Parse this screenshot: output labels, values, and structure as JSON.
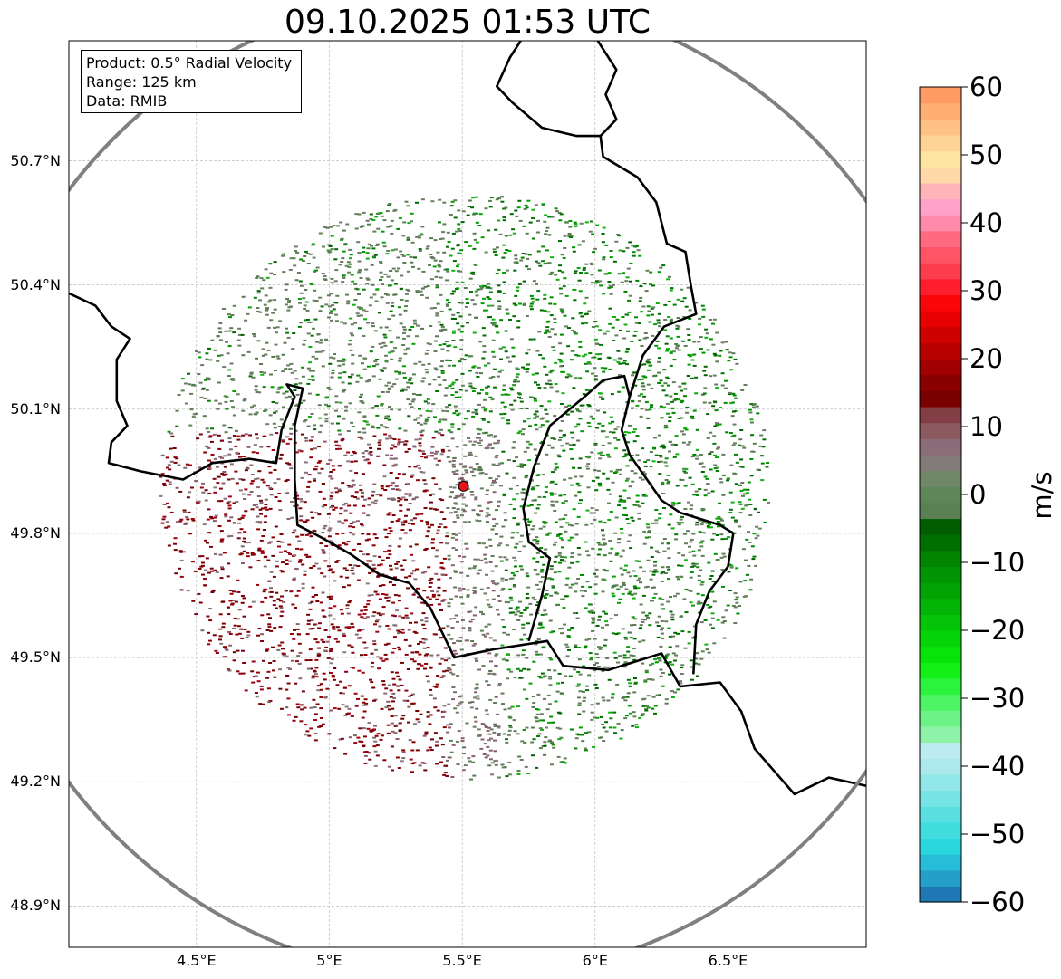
{
  "title": "09.10.2025 01:53 UTC",
  "info": {
    "product": "Product: 0.5° Radial Velocity",
    "range": "Range: 125 km",
    "data": "Data: RMIB"
  },
  "map": {
    "lon_range": [
      4.02,
      7.02
    ],
    "lat_range": [
      48.8,
      50.99
    ],
    "radar_site": {
      "lon": 5.505,
      "lat": 49.914,
      "color": "#e8141c"
    },
    "range_ring_km": 125,
    "ring_color": "#808080",
    "border_color": "#000000",
    "lat_ticks": [
      {
        "value": 48.9,
        "label": "48.9°N"
      },
      {
        "value": 49.2,
        "label": "49.2°N"
      },
      {
        "value": 49.5,
        "label": "49.5°N"
      },
      {
        "value": 49.8,
        "label": "49.8°N"
      },
      {
        "value": 50.1,
        "label": "50.1°N"
      },
      {
        "value": 50.4,
        "label": "50.4°N"
      },
      {
        "value": 50.7,
        "label": "50.7°N"
      }
    ],
    "lon_ticks": [
      {
        "value": 4.5,
        "label": "4.5°E"
      },
      {
        "value": 5.0,
        "label": "5°E"
      },
      {
        "value": 5.5,
        "label": "5.5°E"
      },
      {
        "value": 6.0,
        "label": "6°E"
      },
      {
        "value": 6.5,
        "label": "6.5°E"
      }
    ],
    "borders": [
      [
        [
          4.02,
          50.38
        ],
        [
          4.12,
          50.35
        ],
        [
          4.18,
          50.3
        ],
        [
          4.25,
          50.27
        ],
        [
          4.2,
          50.22
        ],
        [
          4.2,
          50.12
        ],
        [
          4.24,
          50.06
        ],
        [
          4.18,
          50.02
        ],
        [
          4.17,
          49.97
        ],
        [
          4.29,
          49.95
        ],
        [
          4.45,
          49.93
        ],
        [
          4.56,
          49.97
        ],
        [
          4.7,
          49.98
        ],
        [
          4.8,
          49.97
        ],
        [
          4.82,
          50.05
        ],
        [
          4.87,
          50.13
        ],
        [
          4.84,
          50.16
        ],
        [
          4.9,
          50.15
        ],
        [
          4.87,
          50.06
        ],
        [
          4.87,
          49.93
        ],
        [
          4.88,
          49.82
        ],
        [
          4.97,
          49.79
        ],
        [
          5.08,
          49.75
        ],
        [
          5.19,
          49.7
        ],
        [
          5.3,
          49.68
        ],
        [
          5.38,
          49.62
        ],
        [
          5.47,
          49.5
        ],
        [
          5.62,
          49.52
        ],
        [
          5.82,
          49.54
        ],
        [
          5.88,
          49.48
        ],
        [
          6.05,
          49.47
        ],
        [
          6.15,
          49.49
        ],
        [
          6.25,
          49.51
        ],
        [
          6.32,
          49.43
        ],
        [
          6.47,
          49.44
        ],
        [
          6.55,
          49.37
        ],
        [
          6.6,
          49.28
        ],
        [
          6.75,
          49.17
        ],
        [
          6.88,
          49.21
        ],
        [
          7.02,
          49.19
        ]
      ],
      [
        [
          5.75,
          49.54
        ],
        [
          5.8,
          49.65
        ],
        [
          5.83,
          49.74
        ],
        [
          5.75,
          49.78
        ],
        [
          5.73,
          49.86
        ],
        [
          5.77,
          49.96
        ],
        [
          5.83,
          50.06
        ],
        [
          5.96,
          50.13
        ],
        [
          6.03,
          50.17
        ],
        [
          6.11,
          50.18
        ],
        [
          6.13,
          50.13
        ],
        [
          6.1,
          50.05
        ],
        [
          6.13,
          49.99
        ],
        [
          6.25,
          49.88
        ],
        [
          6.32,
          49.85
        ],
        [
          6.47,
          49.82
        ],
        [
          6.52,
          49.8
        ],
        [
          6.5,
          49.72
        ],
        [
          6.43,
          49.66
        ],
        [
          6.38,
          49.58
        ],
        [
          6.37,
          49.46
        ]
      ],
      [
        [
          6.13,
          50.13
        ],
        [
          6.18,
          50.23
        ],
        [
          6.26,
          50.3
        ],
        [
          6.38,
          50.33
        ],
        [
          6.36,
          50.4
        ],
        [
          6.34,
          50.48
        ],
        [
          6.27,
          50.5
        ],
        [
          6.23,
          50.6
        ],
        [
          6.16,
          50.66
        ],
        [
          6.03,
          50.71
        ],
        [
          6.02,
          50.76
        ],
        [
          5.93,
          50.76
        ],
        [
          5.8,
          50.78
        ],
        [
          5.69,
          50.84
        ],
        [
          5.63,
          50.88
        ],
        [
          5.68,
          50.95
        ],
        [
          5.72,
          50.99
        ]
      ],
      [
        [
          6.02,
          50.76
        ],
        [
          6.08,
          50.8
        ],
        [
          6.04,
          50.86
        ],
        [
          6.08,
          50.92
        ],
        [
          6.01,
          50.99
        ]
      ]
    ]
  },
  "colorbar": {
    "vmin": -60,
    "vmax": 60,
    "unit_label": "m/s",
    "ticks": [
      {
        "value": -60,
        "label": "−60"
      },
      {
        "value": -50,
        "label": "−50"
      },
      {
        "value": -40,
        "label": "−40"
      },
      {
        "value": -30,
        "label": "−30"
      },
      {
        "value": -20,
        "label": "−20"
      },
      {
        "value": -10,
        "label": "−10"
      },
      {
        "value": 0,
        "label": "0"
      },
      {
        "value": 10,
        "label": "10"
      },
      {
        "value": 20,
        "label": "20"
      },
      {
        "value": 30,
        "label": "30"
      },
      {
        "value": 40,
        "label": "40"
      },
      {
        "value": 50,
        "label": "50"
      },
      {
        "value": 60,
        "label": "60"
      }
    ],
    "colors": [
      "#1f77b4",
      "#239fc9",
      "#27bdd9",
      "#2bd7de",
      "#41dcde",
      "#5ae0e0",
      "#76e4e4",
      "#92e8e8",
      "#ace9ec",
      "#bdecf0",
      "#8ef2a8",
      "#6cf286",
      "#4ef466",
      "#2cf43e",
      "#12f018",
      "#06e40a",
      "#04d408",
      "#03c406",
      "#02b405",
      "#02a404",
      "#019403",
      "#018402",
      "#006f01",
      "#005e00",
      "#5a7f52",
      "#5f8659",
      "#708868",
      "#827a78",
      "#8b6c79",
      "#8a5a5f",
      "#823d45",
      "#7a0000",
      "#8a0000",
      "#a00000",
      "#b80000",
      "#cf0000",
      "#e60000",
      "#fa0508",
      "#ff1e2e",
      "#fd3d4d",
      "#fe5466",
      "#ff6a80",
      "#ff8aaa",
      "#ffa2c8",
      "#ffb5b7",
      "#ffd9a8",
      "#ffe6a0",
      "#ffd393",
      "#ffc184",
      "#ffae74",
      "#ff9b63"
    ]
  }
}
